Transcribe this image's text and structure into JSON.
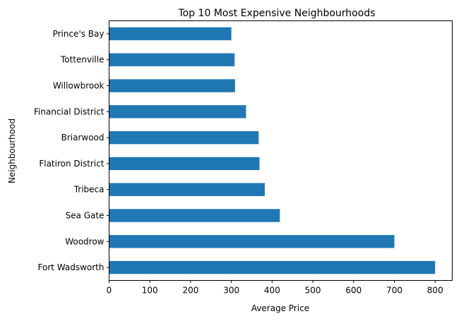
{
  "chart_data": {
    "type": "bar",
    "orientation": "horizontal",
    "title": "Top 10 Most Expensive Neighbourhoods",
    "xlabel": "Average Price",
    "ylabel": "Neighbourhood",
    "categories": [
      "Prince's Bay",
      "Tottenville",
      "Willowbrook",
      "Financial District",
      "Briarwood",
      "Flatiron District",
      "Tribeca",
      "Sea Gate",
      "Woodrow",
      "Fort Wadsworth"
    ],
    "values": [
      300,
      308,
      309,
      336,
      367,
      369,
      382,
      419,
      700,
      800
    ],
    "xlim": [
      0,
      842
    ],
    "xticks": [
      0,
      100,
      200,
      300,
      400,
      500,
      600,
      700,
      800
    ],
    "grid": false,
    "bar_color": "#1f77b4"
  }
}
